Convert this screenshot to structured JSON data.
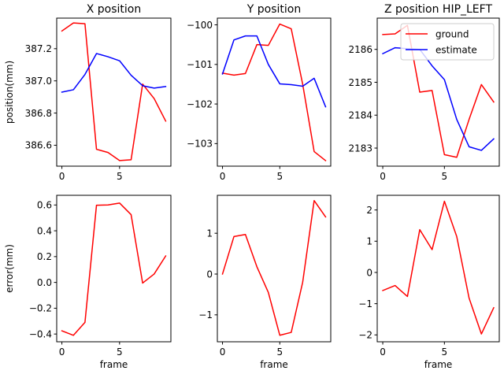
{
  "colors": {
    "ground": "#ff0000",
    "estimate": "#0000ff",
    "error": "#ff0000"
  },
  "chart_data": [
    {
      "type": "line",
      "title": "X position",
      "xlabel": "",
      "ylabel": "position(mm)",
      "x": [
        0,
        1,
        2,
        3,
        4,
        5,
        6,
        7,
        8,
        9
      ],
      "xlim": [
        -0.45,
        9.45
      ],
      "ylim": [
        386.47,
        387.39
      ],
      "xticks": [
        0,
        5
      ],
      "yticks": [
        386.6,
        386.8,
        387.0,
        387.2
      ],
      "ytick_labels": [
        "386.6",
        "386.8",
        "387.0",
        "387.2"
      ],
      "series": [
        {
          "name": "ground",
          "values": [
            387.31,
            387.36,
            387.355,
            386.575,
            386.555,
            386.505,
            386.51,
            386.98,
            386.89,
            386.75
          ]
        },
        {
          "name": "estimate",
          "values": [
            386.93,
            386.945,
            387.04,
            387.17,
            387.15,
            387.125,
            387.035,
            386.97,
            386.955,
            386.965
          ]
        }
      ]
    },
    {
      "type": "line",
      "title": "Y position",
      "xlabel": "",
      "ylabel": "",
      "x": [
        0,
        1,
        2,
        3,
        4,
        5,
        6,
        7,
        8,
        9
      ],
      "xlim": [
        -0.45,
        9.45
      ],
      "ylim": [
        -103.57,
        -99.83
      ],
      "xticks": [
        0,
        5
      ],
      "yticks": [
        -103,
        -102,
        -101,
        -100
      ],
      "ytick_labels": [
        "−103",
        "−102",
        "−101",
        "−100"
      ],
      "series": [
        {
          "name": "ground",
          "values": [
            -101.22,
            -101.27,
            -101.23,
            -100.5,
            -100.52,
            -99.98,
            -100.1,
            -101.5,
            -103.2,
            -103.43
          ]
        },
        {
          "name": "estimate",
          "values": [
            -101.24,
            -100.38,
            -100.28,
            -100.28,
            -101.0,
            -101.49,
            -101.51,
            -101.55,
            -101.35,
            -102.07
          ]
        }
      ]
    },
    {
      "type": "line",
      "title": "Z position HIP_LEFT",
      "xlabel": "",
      "ylabel": "",
      "x": [
        0,
        1,
        2,
        3,
        4,
        5,
        6,
        7,
        8,
        9
      ],
      "xlim": [
        -0.45,
        9.45
      ],
      "ylim": [
        2182.45,
        2186.95
      ],
      "xticks": [
        0,
        5
      ],
      "yticks": [
        2183,
        2184,
        2185,
        2186
      ],
      "ytick_labels": [
        "2183",
        "2184",
        "2185",
        "2186"
      ],
      "legend": {
        "position": "top-right",
        "entries": [
          "ground",
          "estimate"
        ]
      },
      "series": [
        {
          "name": "ground",
          "values": [
            2186.45,
            2186.47,
            2186.73,
            2184.7,
            2184.75,
            2182.8,
            2182.72,
            2183.87,
            2184.93,
            2184.4
          ]
        },
        {
          "name": "estimate",
          "values": [
            2185.87,
            2186.05,
            2186.02,
            2186.0,
            2185.5,
            2185.08,
            2183.87,
            2183.04,
            2182.93,
            2183.28
          ]
        }
      ]
    },
    {
      "type": "line",
      "title": "",
      "xlabel": "frame",
      "ylabel": "error(mm)",
      "x": [
        0,
        1,
        2,
        3,
        4,
        5,
        6,
        7,
        8,
        9
      ],
      "xlim": [
        -0.45,
        9.45
      ],
      "ylim": [
        -0.46,
        0.675
      ],
      "xticks": [
        0,
        5
      ],
      "yticks": [
        -0.4,
        -0.2,
        0.0,
        0.2,
        0.4,
        0.6
      ],
      "ytick_labels": [
        "−0.4",
        "−0.2",
        "0.0",
        "0.2",
        "0.4",
        "0.6"
      ],
      "series": [
        {
          "name": "error",
          "values": [
            -0.375,
            -0.41,
            -0.31,
            0.598,
            0.6,
            0.615,
            0.525,
            -0.005,
            0.065,
            0.205
          ]
        }
      ]
    },
    {
      "type": "line",
      "title": "",
      "xlabel": "frame",
      "ylabel": "",
      "x": [
        0,
        1,
        2,
        3,
        4,
        5,
        6,
        7,
        8,
        9
      ],
      "xlim": [
        -0.45,
        9.45
      ],
      "ylim": [
        -1.66,
        1.93
      ],
      "xticks": [
        0,
        5
      ],
      "yticks": [
        -1,
        0,
        1
      ],
      "ytick_labels": [
        "−1",
        "0",
        "1"
      ],
      "series": [
        {
          "name": "error",
          "values": [
            0.0,
            0.92,
            0.97,
            0.18,
            -0.45,
            -1.5,
            -1.43,
            -0.2,
            1.8,
            1.4
          ]
        }
      ]
    },
    {
      "type": "line",
      "title": "",
      "xlabel": "frame",
      "ylabel": "",
      "x": [
        0,
        1,
        2,
        3,
        4,
        5,
        6,
        7,
        8,
        9
      ],
      "xlim": [
        -0.45,
        9.45
      ],
      "ylim": [
        -2.22,
        2.47
      ],
      "xticks": [
        0,
        5
      ],
      "yticks": [
        -2,
        -1,
        0,
        1,
        2
      ],
      "ytick_labels": [
        "−2",
        "−1",
        "0",
        "1",
        "2"
      ],
      "series": [
        {
          "name": "error",
          "values": [
            -0.58,
            -0.42,
            -0.77,
            1.37,
            0.73,
            2.28,
            1.15,
            -0.82,
            -1.97,
            -1.13
          ]
        }
      ]
    }
  ]
}
